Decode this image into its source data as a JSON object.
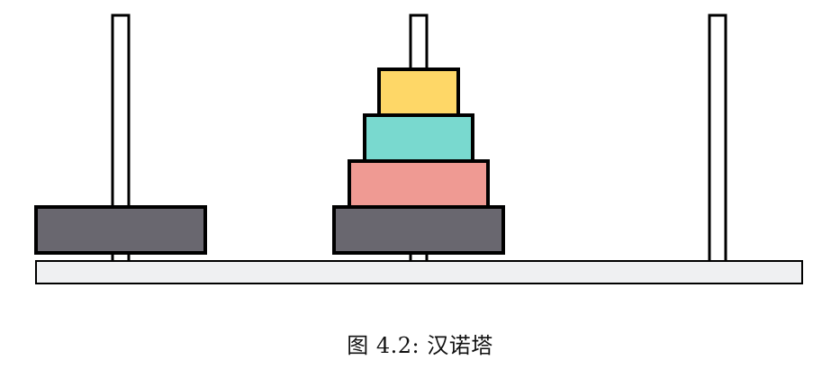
{
  "figure": {
    "caption": "图 4.2: 汉诺塔"
  },
  "colors": {
    "stroke": "#000000",
    "base": "#eff0f2",
    "peg": "#ffffff",
    "disk_large": "#69676f",
    "disk_medium": "#ef9a93",
    "disk_small": "#79d9cf",
    "disk_smallest": "#fed767"
  },
  "diagram": {
    "pegs": [
      {
        "name": "peg-left",
        "disks": [
          {
            "size": 4,
            "color": "#69676f"
          }
        ]
      },
      {
        "name": "peg-middle",
        "disks": [
          {
            "size": 4,
            "color": "#69676f"
          },
          {
            "size": 3,
            "color": "#ef9a93"
          },
          {
            "size": 2,
            "color": "#79d9cf"
          },
          {
            "size": 1,
            "color": "#fed767"
          }
        ]
      },
      {
        "name": "peg-right",
        "disks": []
      }
    ]
  }
}
